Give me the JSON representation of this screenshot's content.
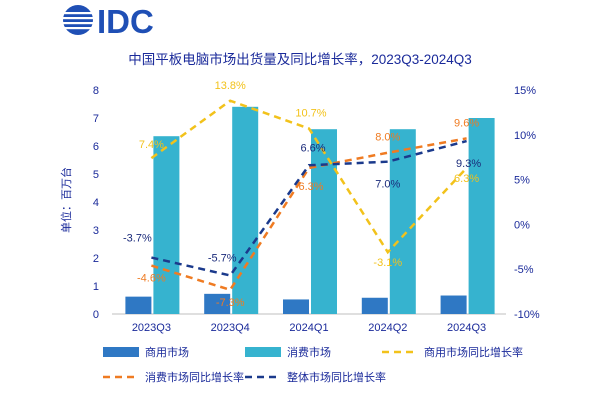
{
  "brand": {
    "logo_text": "IDC",
    "color": "#1f4fb5"
  },
  "chart_data": {
    "type": "bar",
    "title": "中国平板电脑市场出货量及同比增长率，2023Q3-2024Q3",
    "ylabel": "单位：百万台",
    "categories": [
      "2023Q3",
      "2023Q4",
      "2024Q1",
      "2024Q2",
      "2024Q3"
    ],
    "ylim": [
      0,
      8
    ],
    "y_ticks": [
      "0",
      "1",
      "2",
      "3",
      "4",
      "5",
      "6",
      "7",
      "8"
    ],
    "y2lim": [
      -10,
      15
    ],
    "y2_ticks": [
      "-10%",
      "-5%",
      "0%",
      "5%",
      "10%",
      "15%"
    ],
    "grid": false,
    "legend_position": "bottom",
    "series": [
      {
        "name": "商用市场",
        "kind": "bar",
        "color": "#2f78c4",
        "values": [
          0.62,
          0.72,
          0.52,
          0.58,
          0.66
        ]
      },
      {
        "name": "消费市场",
        "kind": "bar",
        "color": "#36b3cf",
        "values": [
          6.35,
          7.4,
          6.6,
          6.6,
          7.0
        ]
      },
      {
        "name": "商用市场同比增长率",
        "kind": "line",
        "axis": "right",
        "color": "#f2c21b",
        "values": [
          7.4,
          13.8,
          10.7,
          -3.1,
          6.3
        ],
        "labels": [
          "7.4%",
          "13.8%",
          "10.7%",
          "-3.1%",
          "6.3%"
        ]
      },
      {
        "name": "消费市场同比增长率",
        "kind": "line",
        "axis": "right",
        "color": "#ef7b22",
        "values": [
          -4.6,
          -7.3,
          6.3,
          8.0,
          9.6
        ],
        "labels": [
          "-4.6%",
          "-7.3%",
          "6.3%",
          "8.0%",
          "9.6%"
        ]
      },
      {
        "name": "整体市场同比增长率",
        "kind": "line",
        "axis": "right",
        "color": "#1b3a8c",
        "values": [
          -3.7,
          -5.7,
          6.6,
          7.0,
          9.3
        ],
        "labels": [
          "-3.7%",
          "-5.7%",
          "6.6%",
          "7.0%",
          "9.3%"
        ]
      }
    ]
  }
}
